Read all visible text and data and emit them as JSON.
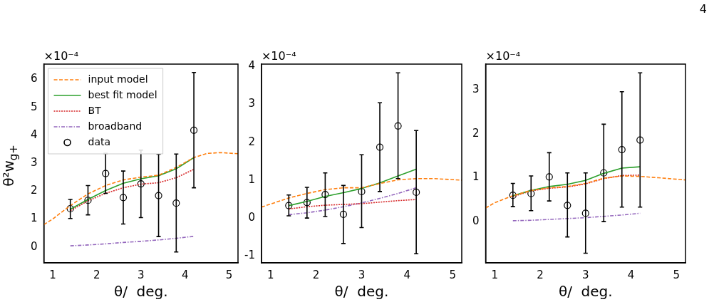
{
  "chart_data": [
    {
      "type": "line",
      "xlabel": "θ/  deg.",
      "ylabel": "θ²w$_{g+}$",
      "annotations": [
        "×10⁻⁴"
      ],
      "xlim": [
        0.8,
        5.2
      ],
      "xticks": [
        1,
        2,
        3,
        4,
        5
      ],
      "ylim": [
        -0.57,
        6.55
      ],
      "yticks": [
        0,
        1,
        2,
        3,
        4,
        5,
        6
      ],
      "grid": false,
      "legend": "top left",
      "series": [
        {
          "name": "input model",
          "color": "#ff7f0e",
          "line_style": "dashed",
          "marker": "none",
          "x": [
            0.8,
            1.0,
            1.4,
            1.8,
            2.2,
            2.6,
            3.0,
            3.4,
            3.8,
            4.2,
            4.5,
            4.8,
            5.2
          ],
          "values": [
            0.8,
            1.0,
            1.48,
            1.9,
            2.2,
            2.4,
            2.5,
            2.57,
            2.85,
            3.2,
            3.35,
            3.38,
            3.34
          ]
        },
        {
          "name": "best fit model",
          "color": "#2ca02c",
          "line_style": "solid",
          "marker": "none",
          "x": [
            1.4,
            1.8,
            2.2,
            2.6,
            3.0,
            3.4,
            3.8,
            4.2
          ],
          "values": [
            1.35,
            1.7,
            2.02,
            2.28,
            2.44,
            2.55,
            2.8,
            3.2
          ]
        },
        {
          "name": "BT",
          "color": "#d62728",
          "line_style": "dotted",
          "marker": "none",
          "x": [
            1.4,
            1.8,
            2.2,
            2.6,
            3.0,
            3.4,
            3.8,
            4.2
          ],
          "values": [
            1.3,
            1.65,
            1.92,
            2.12,
            2.25,
            2.3,
            2.48,
            2.78
          ]
        },
        {
          "name": "broadband",
          "color": "#9467bd",
          "line_style": "dashdot",
          "marker": "none",
          "x": [
            1.4,
            1.8,
            2.2,
            2.6,
            3.0,
            3.4,
            3.8,
            4.2
          ],
          "values": [
            0.04,
            0.07,
            0.11,
            0.16,
            0.2,
            0.25,
            0.31,
            0.38
          ]
        },
        {
          "name": "data",
          "type": "scatter",
          "color": "#000000",
          "marker": "circle",
          "x": [
            1.4,
            1.8,
            2.2,
            2.6,
            3.0,
            3.4,
            3.8,
            4.2
          ],
          "values": [
            1.37,
            1.67,
            2.63,
            1.77,
            2.26,
            1.84,
            1.57,
            4.18
          ],
          "errors": [
            [
              1.02,
              1.7
            ],
            [
              1.15,
              2.2
            ],
            [
              1.92,
              3.35
            ],
            [
              0.82,
              2.72
            ],
            [
              1.05,
              3.47
            ],
            [
              0.37,
              3.32
            ],
            [
              -0.18,
              3.33
            ],
            [
              2.12,
              6.25
            ]
          ]
        }
      ]
    },
    {
      "type": "line",
      "xlabel": "θ/  deg.",
      "annotations": [
        "×10⁻⁴"
      ],
      "xlim": [
        0.8,
        5.2
      ],
      "xticks": [
        1,
        2,
        3,
        4,
        5
      ],
      "ylim": [
        -1.18,
        4.06
      ],
      "yticks": [
        -1,
        0,
        1,
        2,
        3,
        4
      ],
      "grid": false,
      "series": [
        {
          "color": "#ff7f0e",
          "line_style": "dashed",
          "marker": "none",
          "x": [
            0.8,
            1.4,
            1.8,
            2.2,
            2.6,
            3.0,
            3.4,
            3.8,
            4.2,
            4.6,
            5.2
          ],
          "values": [
            0.29,
            0.53,
            0.65,
            0.75,
            0.8,
            0.8,
            0.91,
            1.01,
            1.04,
            1.04,
            1.0
          ]
        },
        {
          "color": "#2ca02c",
          "line_style": "solid",
          "marker": "none",
          "x": [
            1.4,
            1.8,
            2.2,
            2.6,
            3.0,
            3.4,
            3.8,
            4.2
          ],
          "values": [
            0.33,
            0.44,
            0.57,
            0.67,
            0.78,
            0.93,
            1.11,
            1.29
          ]
        },
        {
          "color": "#d62728",
          "line_style": "dotted",
          "marker": "none",
          "x": [
            1.4,
            1.8,
            2.2,
            2.6,
            3.0,
            3.4,
            3.8,
            4.2
          ],
          "values": [
            0.24,
            0.3,
            0.34,
            0.36,
            0.38,
            0.42,
            0.46,
            0.49
          ]
        },
        {
          "color": "#9467bd",
          "line_style": "dashdot",
          "marker": "none",
          "x": [
            1.4,
            1.8,
            2.2,
            2.6,
            3.0,
            3.4,
            3.8,
            4.2
          ],
          "values": [
            0.09,
            0.14,
            0.21,
            0.3,
            0.4,
            0.52,
            0.65,
            0.8
          ]
        },
        {
          "type": "scatter",
          "color": "#000000",
          "marker": "circle",
          "x": [
            1.4,
            1.8,
            2.2,
            2.6,
            3.0,
            3.4,
            3.8,
            4.2
          ],
          "values": [
            0.33,
            0.41,
            0.62,
            0.1,
            0.7,
            1.87,
            2.43,
            0.68
          ],
          "errors": [
            [
              0.06,
              0.61
            ],
            [
              0.0,
              0.81
            ],
            [
              0.04,
              1.19
            ],
            [
              -0.67,
              0.86
            ],
            [
              -0.25,
              1.67
            ],
            [
              0.7,
              3.04
            ],
            [
              1.04,
              3.83
            ],
            [
              -0.94,
              2.31
            ]
          ]
        }
      ]
    },
    {
      "type": "line",
      "xlabel": "θ/  deg.",
      "annotations": [
        "×10⁻⁴",
        "4"
      ],
      "xlim": [
        0.8,
        5.2
      ],
      "xticks": [
        1,
        2,
        3,
        4,
        5
      ],
      "ylim": [
        -0.94,
        3.59
      ],
      "yticks": [
        0,
        1,
        2,
        3
      ],
      "grid": false,
      "series": [
        {
          "color": "#ff7f0e",
          "line_style": "dashed",
          "marker": "none",
          "x": [
            0.8,
            1.0,
            1.4,
            1.8,
            2.2,
            2.6,
            3.0,
            3.4,
            3.8,
            4.2,
            4.6,
            5.2
          ],
          "values": [
            0.31,
            0.43,
            0.59,
            0.71,
            0.77,
            0.8,
            0.87,
            0.99,
            1.04,
            1.03,
            1.0,
            0.95
          ]
        },
        {
          "color": "#2ca02c",
          "line_style": "solid",
          "marker": "none",
          "x": [
            1.4,
            1.8,
            2.2,
            2.6,
            3.0,
            3.4,
            3.8,
            4.2
          ],
          "values": [
            0.59,
            0.71,
            0.8,
            0.85,
            0.94,
            1.1,
            1.22,
            1.25
          ]
        },
        {
          "color": "#d62728",
          "line_style": "dotted",
          "marker": "none",
          "x": [
            1.4,
            1.8,
            2.2,
            2.6,
            3.0,
            3.4,
            3.8,
            4.2
          ],
          "values": [
            0.57,
            0.7,
            0.76,
            0.79,
            0.86,
            0.98,
            1.05,
            1.06
          ]
        },
        {
          "color": "#9467bd",
          "line_style": "dashdot",
          "marker": "none",
          "x": [
            1.4,
            1.8,
            2.2,
            2.6,
            3.0,
            3.4,
            3.8,
            4.2
          ],
          "values": [
            0.02,
            0.03,
            0.05,
            0.07,
            0.09,
            0.12,
            0.15,
            0.19
          ]
        },
        {
          "type": "scatter",
          "color": "#000000",
          "marker": "circle",
          "x": [
            1.4,
            1.8,
            2.2,
            2.6,
            3.0,
            3.4,
            3.8,
            4.2
          ],
          "values": [
            0.6,
            0.64,
            1.02,
            0.37,
            0.19,
            1.11,
            1.64,
            1.86
          ],
          "errors": [
            [
              0.34,
              0.87
            ],
            [
              0.25,
              1.04
            ],
            [
              0.47,
              1.57
            ],
            [
              -0.35,
              1.11
            ],
            [
              -0.72,
              1.11
            ],
            [
              0.0,
              2.22
            ],
            [
              0.33,
              2.96
            ],
            [
              0.33,
              3.39
            ]
          ]
        }
      ]
    }
  ]
}
